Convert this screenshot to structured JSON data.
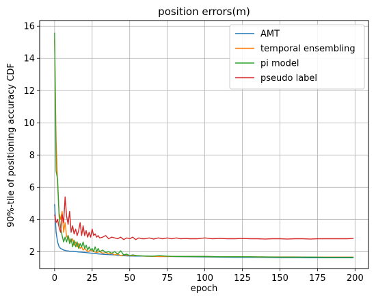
{
  "chart_data": {
    "type": "line",
    "title": "position errors(m)",
    "xlabel": "epoch",
    "ylabel": "90%-tile of positioning accuracy CDF",
    "xlim": [
      -9.95,
      208.95
    ],
    "ylim": [
      0.95,
      16.35
    ],
    "xticks": [
      0,
      25,
      50,
      75,
      100,
      125,
      150,
      175,
      200
    ],
    "yticks": [
      2,
      4,
      6,
      8,
      10,
      12,
      14,
      16
    ],
    "grid": true,
    "legend_position": "top-right",
    "series": [
      {
        "name": "AMT",
        "color": "#1f77b4",
        "x": [
          0,
          1,
          2,
          3,
          4,
          5,
          6,
          7,
          8,
          9,
          10,
          12,
          14,
          16,
          18,
          20,
          25,
          30,
          35,
          40,
          45,
          50,
          60,
          70,
          80,
          90,
          100,
          110,
          120,
          130,
          140,
          150,
          160,
          170,
          180,
          190,
          199
        ],
        "y": [
          4.95,
          3.2,
          2.6,
          2.3,
          2.2,
          2.15,
          2.1,
          2.08,
          2.05,
          2.05,
          2.02,
          2.02,
          2.0,
          1.98,
          1.97,
          1.95,
          1.9,
          1.85,
          1.82,
          1.8,
          1.75,
          1.73,
          1.72,
          1.7,
          1.7,
          1.68,
          1.67,
          1.66,
          1.65,
          1.65,
          1.64,
          1.63,
          1.63,
          1.62,
          1.62,
          1.62,
          1.62
        ]
      },
      {
        "name": "temporal ensembling",
        "color": "#ff7f0e",
        "x": [
          0,
          1,
          2,
          3,
          4,
          5,
          6,
          7,
          8,
          9,
          10,
          11,
          12,
          13,
          14,
          15,
          16,
          17,
          18,
          19,
          20,
          22,
          24,
          26,
          28,
          30,
          32,
          34,
          36,
          38,
          40,
          42,
          44,
          46,
          48,
          50,
          55,
          60,
          70,
          80,
          90,
          100,
          110,
          120,
          130,
          140,
          150,
          160,
          170,
          180,
          190,
          199
        ],
        "y": [
          15.2,
          9.0,
          6.2,
          4.4,
          4.0,
          4.5,
          3.2,
          3.8,
          2.9,
          3.0,
          2.7,
          2.6,
          2.8,
          2.4,
          2.6,
          2.3,
          2.5,
          2.2,
          2.3,
          2.1,
          2.2,
          2.0,
          2.1,
          2.0,
          1.95,
          2.0,
          1.9,
          1.95,
          1.85,
          1.9,
          1.8,
          1.85,
          1.75,
          1.8,
          1.78,
          1.75,
          1.75,
          1.72,
          1.7,
          1.7,
          1.7,
          1.7,
          1.68,
          1.68,
          1.68,
          1.67,
          1.67,
          1.67,
          1.66,
          1.66,
          1.66,
          1.66
        ]
      },
      {
        "name": "pi model",
        "color": "#2ca02c",
        "x": [
          0,
          1,
          2,
          3,
          4,
          5,
          6,
          7,
          8,
          9,
          10,
          11,
          12,
          13,
          14,
          15,
          16,
          17,
          18,
          19,
          20,
          21,
          22,
          23,
          24,
          25,
          26,
          27,
          28,
          29,
          30,
          32,
          34,
          36,
          38,
          40,
          42,
          44,
          46,
          48,
          50,
          52,
          55,
          60,
          65,
          70,
          75,
          80,
          90,
          100,
          110,
          120,
          130,
          140,
          150,
          160,
          170,
          180,
          190,
          199
        ],
        "y": [
          15.6,
          7.0,
          6.5,
          4.2,
          3.5,
          3.0,
          2.6,
          2.9,
          2.6,
          3.0,
          2.5,
          2.8,
          2.3,
          2.7,
          2.3,
          2.6,
          2.2,
          2.5,
          2.3,
          2.6,
          2.2,
          2.4,
          2.1,
          2.3,
          2.1,
          2.2,
          2.0,
          2.3,
          2.0,
          2.2,
          2.0,
          2.1,
          1.95,
          2.0,
          1.9,
          2.0,
          1.85,
          2.05,
          1.8,
          1.85,
          1.75,
          1.8,
          1.75,
          1.73,
          1.72,
          1.75,
          1.72,
          1.7,
          1.7,
          1.7,
          1.68,
          1.68,
          1.68,
          1.67,
          1.66,
          1.66,
          1.66,
          1.65,
          1.65,
          1.65
        ]
      },
      {
        "name": "pseudo label",
        "color": "#d62728",
        "x": [
          0,
          1,
          2,
          3,
          4,
          5,
          6,
          7,
          8,
          9,
          10,
          11,
          12,
          13,
          14,
          15,
          16,
          17,
          18,
          19,
          20,
          21,
          22,
          23,
          24,
          25,
          26,
          27,
          28,
          29,
          30,
          32,
          34,
          36,
          38,
          40,
          42,
          44,
          46,
          48,
          50,
          52,
          54,
          56,
          58,
          60,
          63,
          66,
          69,
          72,
          75,
          78,
          81,
          84,
          87,
          90,
          95,
          100,
          105,
          110,
          115,
          120,
          125,
          130,
          135,
          140,
          145,
          150,
          155,
          160,
          165,
          170,
          175,
          180,
          185,
          190,
          195,
          199
        ],
        "y": [
          4.3,
          3.8,
          4.0,
          3.5,
          3.2,
          4.3,
          3.8,
          5.4,
          4.2,
          3.7,
          4.5,
          3.2,
          3.6,
          3.1,
          3.4,
          3.0,
          3.3,
          3.8,
          3.0,
          3.6,
          3.0,
          3.3,
          2.9,
          3.2,
          2.9,
          3.4,
          3.0,
          3.1,
          2.9,
          3.0,
          2.85,
          2.9,
          3.0,
          2.8,
          2.9,
          2.85,
          2.8,
          2.9,
          2.75,
          2.85,
          2.8,
          2.9,
          2.75,
          2.85,
          2.8,
          2.8,
          2.85,
          2.78,
          2.85,
          2.8,
          2.85,
          2.8,
          2.85,
          2.8,
          2.82,
          2.8,
          2.8,
          2.85,
          2.8,
          2.82,
          2.8,
          2.8,
          2.82,
          2.8,
          2.8,
          2.78,
          2.8,
          2.8,
          2.78,
          2.8,
          2.8,
          2.78,
          2.8,
          2.8,
          2.8,
          2.8,
          2.8,
          2.82
        ]
      }
    ]
  }
}
